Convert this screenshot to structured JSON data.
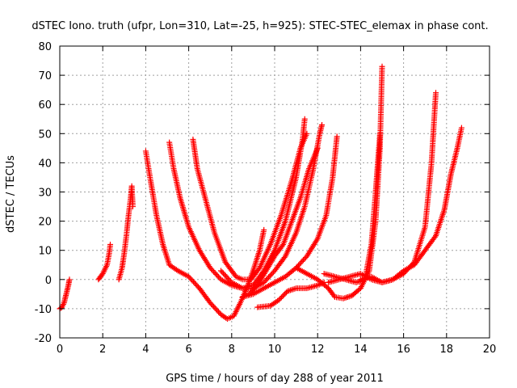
{
  "chart_data": {
    "type": "scatter",
    "title": "dSTEC Iono. truth (ufpr, Lon=310, Lat=-25, h=925): STEC-STEC_elemax in phase cont.",
    "xlabel": "GPS time / hours of day 288 of year 2011",
    "ylabel": "dSTEC  / TECUs",
    "xlim": [
      0,
      20
    ],
    "ylim": [
      -20,
      80
    ],
    "xticks": [
      "0",
      "2",
      "4",
      "6",
      "8",
      "10",
      "12",
      "14",
      "16",
      "18",
      "20"
    ],
    "yticks": [
      "-20",
      "-10",
      "0",
      "10",
      "20",
      "30",
      "40",
      "50",
      "60",
      "70",
      "80"
    ],
    "grid": true,
    "legend": "none",
    "marker": "plus",
    "color": "#ff0000",
    "series": [
      {
        "points": [
          [
            0.0,
            -10
          ],
          [
            0.1,
            -9.5
          ],
          [
            0.2,
            -8
          ],
          [
            0.3,
            -5
          ],
          [
            0.4,
            -2
          ],
          [
            0.45,
            0
          ]
        ]
      },
      {
        "points": [
          [
            1.8,
            0
          ],
          [
            2.0,
            2
          ],
          [
            2.2,
            5
          ],
          [
            2.3,
            9
          ],
          [
            2.35,
            12
          ]
        ]
      },
      {
        "points": [
          [
            2.75,
            0
          ],
          [
            2.9,
            4
          ],
          [
            3.0,
            9
          ],
          [
            3.1,
            15
          ],
          [
            3.2,
            22
          ],
          [
            3.3,
            28
          ],
          [
            3.35,
            32
          ],
          [
            3.4,
            25
          ]
        ]
      },
      {
        "points": [
          [
            4.0,
            44
          ],
          [
            4.2,
            35
          ],
          [
            4.5,
            22
          ],
          [
            4.8,
            12
          ],
          [
            5.1,
            5
          ],
          [
            5.5,
            3
          ],
          [
            6.0,
            1
          ],
          [
            6.5,
            -3
          ],
          [
            7.0,
            -8
          ],
          [
            7.5,
            -12
          ],
          [
            7.8,
            -13.5
          ],
          [
            8.1,
            -12.5
          ],
          [
            8.4,
            -8
          ],
          [
            8.7,
            -3
          ],
          [
            9.0,
            3
          ],
          [
            9.3,
            10
          ],
          [
            9.5,
            17
          ]
        ]
      },
      {
        "points": [
          [
            5.1,
            47
          ],
          [
            5.3,
            38
          ],
          [
            5.6,
            28
          ],
          [
            6.0,
            18
          ],
          [
            6.5,
            10
          ],
          [
            7.0,
            4
          ],
          [
            7.5,
            0
          ],
          [
            8.0,
            -2
          ],
          [
            8.5,
            -3
          ],
          [
            9.0,
            -2
          ],
          [
            9.5,
            3
          ],
          [
            10.0,
            10
          ],
          [
            10.5,
            20
          ],
          [
            11.0,
            35
          ],
          [
            11.3,
            48
          ],
          [
            11.4,
            55
          ]
        ]
      },
      {
        "points": [
          [
            6.2,
            48
          ],
          [
            6.4,
            38
          ],
          [
            6.8,
            27
          ],
          [
            7.2,
            16
          ],
          [
            7.7,
            6
          ],
          [
            8.2,
            1
          ],
          [
            8.5,
            0
          ],
          [
            8.9,
            0
          ],
          [
            9.3,
            4
          ],
          [
            9.8,
            12
          ],
          [
            10.3,
            22
          ],
          [
            10.8,
            34
          ],
          [
            11.2,
            45
          ],
          [
            11.5,
            50
          ]
        ]
      },
      {
        "points": [
          [
            7.5,
            3
          ],
          [
            8.0,
            -1
          ],
          [
            8.5,
            -3
          ],
          [
            9.0,
            -3
          ],
          [
            9.5,
            -1
          ],
          [
            10.0,
            3
          ],
          [
            10.5,
            8
          ],
          [
            11.0,
            16
          ],
          [
            11.4,
            25
          ],
          [
            11.8,
            38
          ],
          [
            12.1,
            50
          ],
          [
            12.2,
            53
          ]
        ]
      },
      {
        "points": [
          [
            8.5,
            -6
          ],
          [
            9.0,
            -5
          ],
          [
            9.5,
            -3
          ],
          [
            10.0,
            -1
          ],
          [
            10.5,
            1
          ],
          [
            11.0,
            4
          ],
          [
            11.5,
            8
          ],
          [
            12.0,
            14
          ],
          [
            12.4,
            22
          ],
          [
            12.7,
            35
          ],
          [
            12.9,
            49
          ]
        ]
      },
      {
        "points": [
          [
            8.8,
            -5
          ],
          [
            9.2,
            -2
          ],
          [
            9.6,
            3
          ],
          [
            10.0,
            8
          ],
          [
            10.4,
            12
          ],
          [
            10.8,
            20
          ],
          [
            11.2,
            28
          ],
          [
            11.6,
            38
          ],
          [
            12.0,
            45
          ]
        ]
      },
      {
        "points": [
          [
            9.2,
            -9.5
          ],
          [
            9.8,
            -9
          ],
          [
            10.2,
            -7
          ],
          [
            10.6,
            -4
          ],
          [
            11.0,
            -3
          ],
          [
            11.5,
            -3
          ],
          [
            12.0,
            -2
          ],
          [
            12.3,
            -1
          ]
        ]
      },
      {
        "points": [
          [
            11.0,
            4
          ],
          [
            11.5,
            2
          ],
          [
            12.0,
            0
          ],
          [
            12.5,
            -3
          ],
          [
            12.8,
            -6
          ],
          [
            13.2,
            -6.5
          ],
          [
            13.6,
            -5.5
          ],
          [
            14.0,
            -3
          ],
          [
            14.4,
            3
          ],
          [
            14.7,
            20
          ],
          [
            14.9,
            45
          ],
          [
            15.0,
            73
          ]
        ]
      },
      {
        "points": [
          [
            12.3,
            2
          ],
          [
            12.8,
            1
          ],
          [
            13.3,
            0
          ],
          [
            13.8,
            -1
          ],
          [
            14.2,
            0
          ],
          [
            14.5,
            12
          ],
          [
            14.7,
            30
          ],
          [
            14.8,
            40
          ],
          [
            14.9,
            50
          ]
        ]
      },
      {
        "points": [
          [
            12.5,
            -1
          ],
          [
            13.0,
            0
          ],
          [
            13.5,
            1
          ],
          [
            14.0,
            2
          ],
          [
            14.5,
            0
          ],
          [
            15.0,
            -1
          ],
          [
            15.5,
            0
          ],
          [
            16.0,
            2
          ],
          [
            16.5,
            6
          ],
          [
            17.0,
            18
          ],
          [
            17.3,
            40
          ],
          [
            17.5,
            64
          ]
        ]
      },
      {
        "points": [
          [
            14.0,
            0
          ],
          [
            14.5,
            1
          ],
          [
            15.0,
            -1
          ],
          [
            15.5,
            0
          ],
          [
            16.0,
            3
          ],
          [
            16.5,
            5
          ],
          [
            17.0,
            10
          ],
          [
            17.5,
            15
          ],
          [
            17.9,
            24
          ],
          [
            18.2,
            36
          ],
          [
            18.5,
            45
          ],
          [
            18.7,
            52
          ]
        ]
      }
    ]
  }
}
